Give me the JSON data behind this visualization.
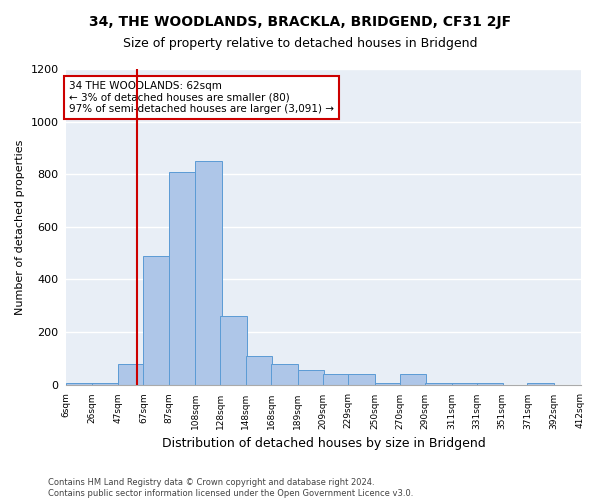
{
  "title": "34, THE WOODLANDS, BRACKLA, BRIDGEND, CF31 2JF",
  "subtitle": "Size of property relative to detached houses in Bridgend",
  "xlabel": "Distribution of detached houses by size in Bridgend",
  "ylabel": "Number of detached properties",
  "bar_color": "#aec6e8",
  "bar_edge_color": "#5b9bd5",
  "background_color": "#e8eef6",
  "grid_color": "#ffffff",
  "vline_color": "#cc0000",
  "vline_x": 62,
  "annotation_text": "34 THE WOODLANDS: 62sqm\n← 3% of detached houses are smaller (80)\n97% of semi-detached houses are larger (3,091) →",
  "annotation_box_color": "#ffffff",
  "annotation_box_edge": "#cc0000",
  "footer_text": "Contains HM Land Registry data © Crown copyright and database right 2024.\nContains public sector information licensed under the Open Government Licence v3.0.",
  "bins_left": [
    6,
    26,
    47,
    67,
    87,
    108,
    128,
    148,
    168,
    189,
    209,
    229,
    250,
    270,
    290,
    311,
    331,
    351,
    371,
    392
  ],
  "bin_width": 21,
  "bin_labels": [
    "6sqm",
    "26sqm",
    "47sqm",
    "67sqm",
    "87sqm",
    "108sqm",
    "128sqm",
    "148sqm",
    "168sqm",
    "189sqm",
    "209sqm",
    "229sqm",
    "250sqm",
    "270sqm",
    "290sqm",
    "311sqm",
    "331sqm",
    "351sqm",
    "371sqm",
    "392sqm",
    "412sqm"
  ],
  "heights": [
    5,
    5,
    80,
    490,
    810,
    850,
    260,
    110,
    80,
    55,
    40,
    40,
    5,
    40,
    5,
    5,
    5,
    0,
    5,
    0
  ],
  "ylim": [
    0,
    1200
  ],
  "yticks": [
    0,
    200,
    400,
    600,
    800,
    1000,
    1200
  ]
}
